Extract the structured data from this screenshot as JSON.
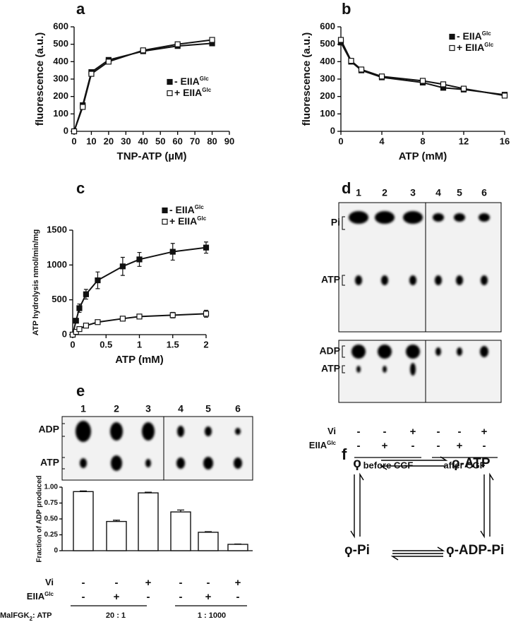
{
  "panel_labels": [
    "a",
    "b",
    "c",
    "d",
    "e",
    "f"
  ],
  "chart_data": [
    {
      "type": "scatter-line",
      "xlabel": "TNP-ATP (µM)",
      "ylabel": "fluorescence (a.u.)",
      "x": [
        0,
        5,
        10,
        20,
        40,
        60,
        80
      ],
      "series": [
        {
          "name": "- EIIA",
          "name_sup": "Glc",
          "color": "#111111",
          "marker": "filled",
          "values": [
            0,
            150,
            340,
            410,
            460,
            490,
            505
          ]
        },
        {
          "name": "+ EIIA",
          "name_sup": "Glc",
          "color": "#111111",
          "marker": "open",
          "values": [
            0,
            140,
            330,
            400,
            465,
            500,
            525
          ]
        }
      ],
      "xlim": [
        0,
        90
      ],
      "xticks": [
        0,
        10,
        20,
        30,
        40,
        50,
        60,
        70,
        80,
        90
      ],
      "ylim": [
        0,
        600
      ],
      "yticks": [
        0,
        100,
        200,
        300,
        400,
        500,
        600
      ],
      "legend": "lower right"
    },
    {
      "type": "scatter-line",
      "xlabel": "ATP (mM)",
      "ylabel": "fluorescence (a.u.)",
      "x": [
        0,
        1,
        2,
        4,
        8,
        10,
        12,
        16
      ],
      "series": [
        {
          "name": "- EIIA",
          "name_sup": "Glc",
          "color": "#111111",
          "marker": "filled",
          "values": [
            510,
            400,
            350,
            310,
            280,
            250,
            240,
            210
          ]
        },
        {
          "name": "+ EIIA",
          "name_sup": "Glc",
          "color": "#111111",
          "marker": "open",
          "values": [
            525,
            405,
            355,
            315,
            290,
            270,
            245,
            205
          ]
        }
      ],
      "xlim": [
        0,
        16
      ],
      "xticks": [
        0,
        4,
        8,
        12,
        16
      ],
      "ylim": [
        0,
        600
      ],
      "yticks": [
        0,
        100,
        200,
        300,
        400,
        500,
        600
      ],
      "legend": "upper right"
    },
    {
      "type": "scatter-line",
      "xlabel": "ATP (mM)",
      "ylabel": "ATP hydrolysis nmol/min/mg",
      "x": [
        0,
        0.05,
        0.1,
        0.2,
        0.375,
        0.75,
        1,
        1.5,
        2
      ],
      "series": [
        {
          "name": "- EIIA",
          "name_sup": "Glc",
          "color": "#111111",
          "marker": "filled",
          "values": [
            0,
            200,
            380,
            580,
            780,
            980,
            1080,
            1190,
            1250
          ],
          "errors": [
            0,
            30,
            60,
            70,
            120,
            130,
            100,
            120,
            80
          ]
        },
        {
          "name": "+ EIIA",
          "name_sup": "Glc",
          "color": "#111111",
          "marker": "open",
          "values": [
            0,
            40,
            80,
            130,
            180,
            230,
            260,
            280,
            300
          ],
          "errors": [
            0,
            10,
            15,
            20,
            20,
            30,
            30,
            40,
            50
          ]
        }
      ],
      "xlim": [
        0,
        2
      ],
      "xticks": [
        0,
        0.5,
        1,
        1.5,
        2
      ],
      "ylim": [
        0,
        1500
      ],
      "yticks": [
        0,
        500,
        1000,
        1500
      ],
      "legend": "top"
    },
    {
      "type": "bar",
      "ylabel": "Fraction of ADP produced",
      "categories": [
        null,
        null,
        null,
        null,
        null,
        null
      ],
      "values": [
        0.93,
        0.46,
        0.91,
        0.61,
        0.29,
        0.1
      ],
      "errors": [
        0.01,
        0.02,
        0.01,
        0.03,
        0.01,
        0.005
      ],
      "color": "#ffffff",
      "edge_color": "#111111",
      "ylim": [
        0,
        1
      ],
      "yticks": [
        0,
        {
          "value": 0.25,
          "label": "0.25"
        },
        {
          "value": 0.5,
          "label": "0.50"
        },
        {
          "value": 0.75,
          "label": "0.75"
        },
        {
          "value": 1,
          "label": "1.00"
        }
      ],
      "conditions": [
        {
          "label": "Vi",
          "signs": [
            "-",
            "-",
            "+",
            "-",
            "-",
            "+"
          ]
        },
        {
          "label": "EIIA",
          "label_sup": "Glc",
          "signs": [
            "-",
            "+",
            "-",
            "-",
            "+",
            "-"
          ]
        }
      ],
      "ratio_label": "MalFGK",
      "ratio_label_sub": "2",
      "ratio_label_rest": ": ATP",
      "groups": [
        "20 : 1",
        "1 : 1000"
      ]
    }
  ],
  "gel_d": {
    "lanes": [
      "1",
      "2",
      "3",
      "4",
      "5",
      "6"
    ],
    "upper_labels": [
      "Pi",
      "ATP"
    ],
    "lower_labels": [
      "ADP",
      "ATP"
    ],
    "conditions": [
      {
        "label": "Vi",
        "signs": [
          "-",
          "-",
          "+",
          "-",
          "-",
          "+"
        ]
      },
      {
        "label": "EIIA",
        "label_sup": "Glc",
        "signs": [
          "-",
          "+",
          "-",
          "-",
          "+",
          "-"
        ]
      }
    ],
    "groups": [
      "before CGF",
      "after CGF"
    ]
  },
  "gel_e": {
    "lanes": [
      "1",
      "2",
      "3",
      "4",
      "5",
      "6"
    ],
    "labels": [
      "ADP",
      "ATP"
    ]
  },
  "diagram_f": {
    "nodes": [
      "ϙ",
      "ϙ-ATP",
      "ϙ-Pi",
      "ϙ-ADP-Pi"
    ]
  }
}
